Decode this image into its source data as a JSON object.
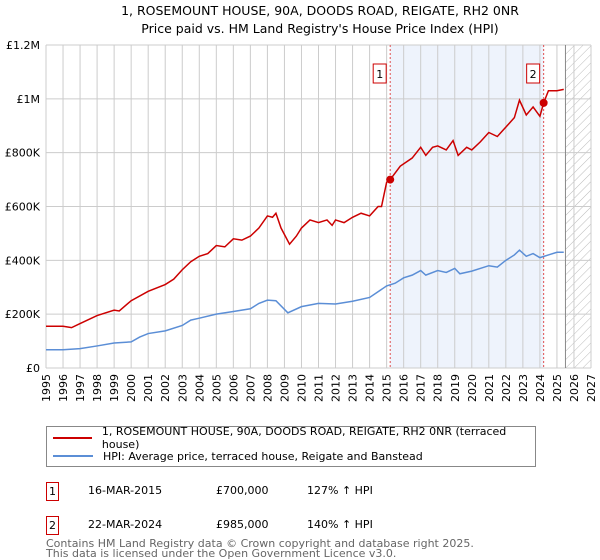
{
  "chart_data": {
    "type": "line",
    "title": "1, ROSEMOUNT HOUSE, 90A, DOODS ROAD, REIGATE, RH2 0NR",
    "subtitle": "Price paid vs. HM Land Registry's House Price Index (HPI)",
    "xlim": [
      1995,
      2027
    ],
    "ylim": [
      0,
      1200000
    ],
    "x_ticks": [
      "1995",
      "1996",
      "1997",
      "1998",
      "1999",
      "2000",
      "2001",
      "2002",
      "2003",
      "2004",
      "2005",
      "2006",
      "2007",
      "2008",
      "2009",
      "2010",
      "2011",
      "2012",
      "2013",
      "2014",
      "2015",
      "2016",
      "2017",
      "2018",
      "2019",
      "2020",
      "2021",
      "2022",
      "2023",
      "2024",
      "2025",
      "2026",
      "2027"
    ],
    "y_ticks": [
      {
        "v": 0,
        "label": "£0"
      },
      {
        "v": 200000,
        "label": "£200K"
      },
      {
        "v": 400000,
        "label": "£400K"
      },
      {
        "v": 600000,
        "label": "£600K"
      },
      {
        "v": 800000,
        "label": "£800K"
      },
      {
        "v": 1000000,
        "label": "£1M"
      },
      {
        "v": 1200000,
        "label": "£1.2M"
      }
    ],
    "grid": true,
    "shaded_period": [
      2015.21,
      2024.22
    ],
    "forecast_hatch_from": 2025.5,
    "series": [
      {
        "name": "1, ROSEMOUNT HOUSE, 90A, DOODS ROAD, REIGATE, RH2 0NR (terraced house)",
        "color": "#cc0000",
        "x": [
          1995,
          1996,
          1996.5,
          1997,
          1998,
          1999,
          1999.3,
          2000,
          2001,
          2002,
          2002.5,
          2003,
          2003.5,
          2004,
          2004.5,
          2005,
          2005.5,
          2006,
          2006.5,
          2007,
          2007.5,
          2008,
          2008.3,
          2008.5,
          2008.8,
          2009.3,
          2009.7,
          2010,
          2010.5,
          2011,
          2011.5,
          2011.8,
          2012,
          2012.5,
          2013,
          2013.5,
          2014,
          2014.5,
          2014.7,
          2015,
          2015.21,
          2015.8,
          2016.5,
          2017,
          2017.3,
          2017.7,
          2018,
          2018.5,
          2018.9,
          2019.2,
          2019.7,
          2020,
          2020.5,
          2021,
          2021.5,
          2022,
          2022.5,
          2022.8,
          2023.2,
          2023.6,
          2024,
          2024.22,
          2024.5,
          2025,
          2025.4
        ],
        "y": [
          155000,
          155000,
          150000,
          165000,
          195000,
          215000,
          212000,
          250000,
          285000,
          310000,
          330000,
          365000,
          395000,
          415000,
          425000,
          455000,
          450000,
          480000,
          475000,
          490000,
          520000,
          565000,
          560000,
          575000,
          520000,
          460000,
          490000,
          520000,
          550000,
          540000,
          550000,
          530000,
          550000,
          540000,
          560000,
          575000,
          565000,
          600000,
          600000,
          690000,
          700000,
          750000,
          780000,
          820000,
          790000,
          820000,
          825000,
          810000,
          845000,
          790000,
          820000,
          810000,
          840000,
          875000,
          860000,
          895000,
          930000,
          995000,
          940000,
          970000,
          935000,
          985000,
          1030000,
          1030000,
          1035000
        ]
      },
      {
        "name": "HPI: Average price, terraced house, Reigate and Banstead",
        "color": "#5b8ed6",
        "x": [
          1995,
          1996,
          1997,
          1998,
          1999,
          2000,
          2000.5,
          2001,
          2002,
          2003,
          2003.5,
          2004,
          2005,
          2006,
          2007,
          2007.5,
          2008,
          2008.5,
          2009.2,
          2010,
          2011,
          2012,
          2013,
          2014,
          2015,
          2015.5,
          2016,
          2016.5,
          2017,
          2017.3,
          2018,
          2018.5,
          2019,
          2019.3,
          2020,
          2021,
          2021.5,
          2022,
          2022.5,
          2022.8,
          2023.2,
          2023.6,
          2024,
          2024.5,
          2025,
          2025.4
        ],
        "y": [
          68000,
          68000,
          72000,
          82000,
          93000,
          97000,
          115000,
          128000,
          138000,
          158000,
          178000,
          185000,
          200000,
          210000,
          220000,
          240000,
          252000,
          250000,
          205000,
          228000,
          240000,
          238000,
          248000,
          262000,
          305000,
          315000,
          335000,
          345000,
          362000,
          345000,
          362000,
          355000,
          370000,
          350000,
          360000,
          380000,
          375000,
          400000,
          420000,
          438000,
          415000,
          425000,
          410000,
          420000,
          430000,
          430000
        ]
      }
    ],
    "sales": [
      {
        "label": "1",
        "x": 2015.21,
        "y": 700000,
        "date": "16-MAR-2015",
        "price": "£700,000",
        "hpi": "127% ↑ HPI"
      },
      {
        "label": "2",
        "x": 2024.22,
        "y": 985000,
        "date": "22-MAR-2024",
        "price": "£985,000",
        "hpi": "140% ↑ HPI"
      }
    ]
  },
  "footer": {
    "line1": "Contains HM Land Registry data © Crown copyright and database right 2025.",
    "line2": "This data is licensed under the Open Government Licence v3.0."
  }
}
